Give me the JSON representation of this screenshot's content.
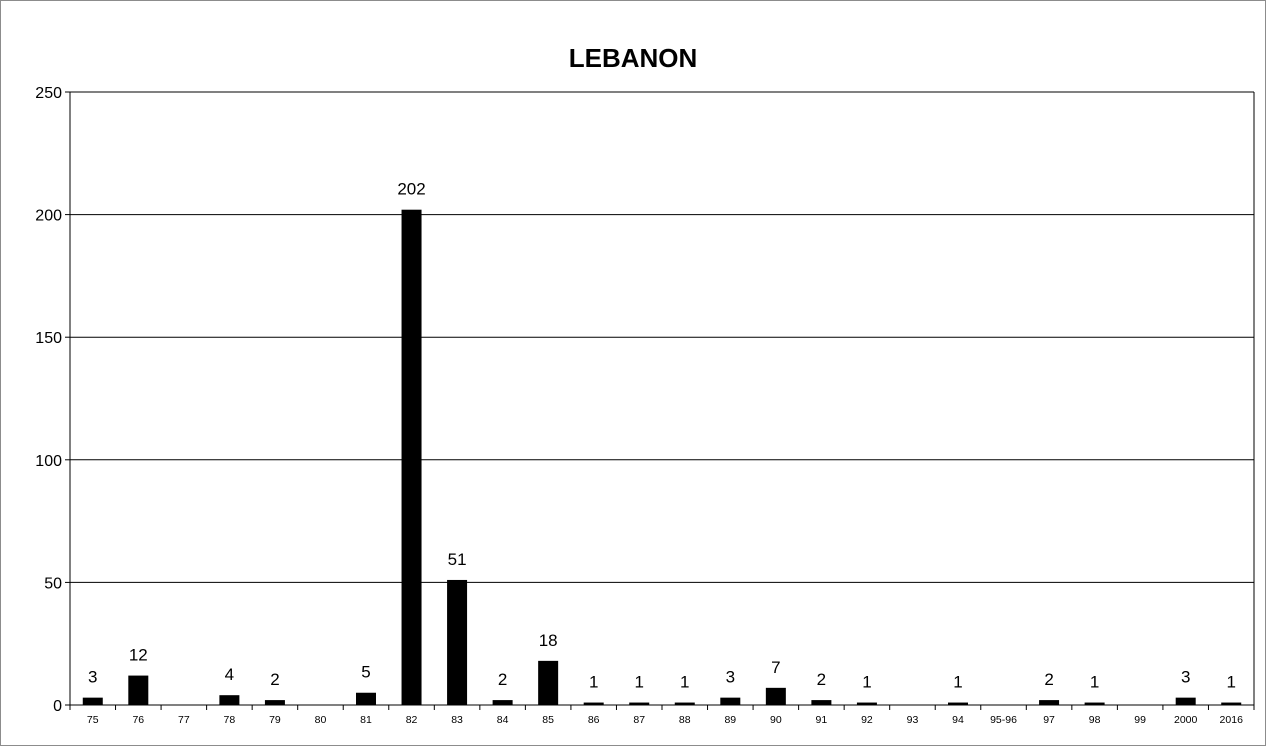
{
  "chart_data": {
    "type": "bar",
    "title": "LEBANON",
    "xlabel": "",
    "ylabel": "",
    "ylim": [
      0,
      250
    ],
    "yticks": [
      0,
      50,
      100,
      150,
      200,
      250
    ],
    "grid": true,
    "legend": "none",
    "bar_color": "#000000",
    "categories": [
      "75",
      "76",
      "77",
      "78",
      "79",
      "80",
      "81",
      "82",
      "83",
      "84",
      "85",
      "86",
      "87",
      "88",
      "89",
      "90",
      "91",
      "92",
      "93",
      "94",
      "95-96",
      "97",
      "98",
      "99",
      "2000",
      "2016"
    ],
    "values": [
      3,
      12,
      0,
      4,
      2,
      0,
      5,
      202,
      51,
      2,
      18,
      1,
      1,
      1,
      3,
      7,
      2,
      1,
      0,
      1,
      0,
      2,
      1,
      0,
      3,
      1
    ],
    "data_labels": [
      "3",
      "12",
      "",
      "4",
      "2",
      "",
      "5",
      "202",
      "51",
      "2",
      "18",
      "1",
      "1",
      "1",
      "3",
      "7",
      "2",
      "1",
      "",
      "1",
      "",
      "2",
      "1",
      "",
      "3",
      "1"
    ]
  }
}
